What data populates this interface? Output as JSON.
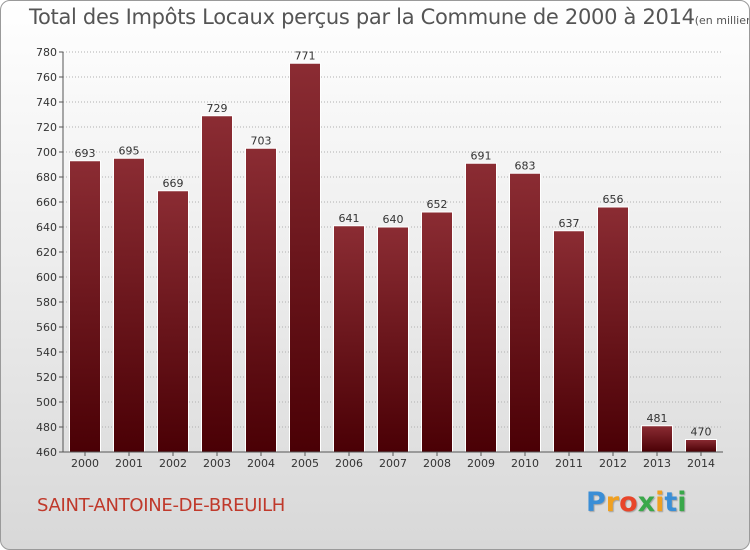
{
  "title": "Total des Impôts Locaux perçus par la Commune de 2000 à 2014",
  "title_unit": "(en milliers d'€)",
  "commune": "SAINT-ANTOINE-DE-BREUILH",
  "logo": {
    "letters": [
      "P",
      "r",
      "o",
      "x",
      "i",
      "t",
      "i"
    ],
    "colors": [
      "#3a8ed6",
      "#f0a020",
      "#e8452a",
      "#3aa84a",
      "#f0a020",
      "#3a8ed6",
      "#3aa84a"
    ]
  },
  "colors": {
    "bar_top": "#8b2c33",
    "bar_bottom": "#4a0005",
    "grid": "#b0b0b0",
    "text": "#333333"
  },
  "chart_data": {
    "type": "bar",
    "title": "Total des Impôts Locaux perçus par la Commune de 2000 à 2014",
    "xlabel": "",
    "ylabel": "",
    "categories": [
      "2000",
      "2001",
      "2002",
      "2003",
      "2004",
      "2005",
      "2006",
      "2007",
      "2008",
      "2009",
      "2010",
      "2011",
      "2012",
      "2013",
      "2014"
    ],
    "values": [
      693,
      695,
      669,
      729,
      703,
      771,
      641,
      640,
      652,
      691,
      683,
      637,
      656,
      481,
      470
    ],
    "ylim": [
      460,
      780
    ],
    "yticks": [
      460,
      480,
      500,
      520,
      540,
      560,
      580,
      600,
      620,
      640,
      660,
      680,
      700,
      720,
      740,
      760,
      780
    ],
    "grid": true
  }
}
